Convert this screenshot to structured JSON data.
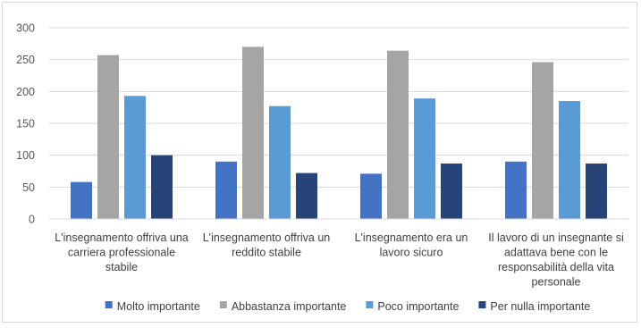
{
  "chart_data": {
    "type": "bar",
    "ylim": [
      0,
      300
    ],
    "yticks": [
      0,
      50,
      100,
      150,
      200,
      250,
      300
    ],
    "grid": true,
    "legend_position": "bottom",
    "categories": [
      [
        "L'insegnamento offriva una",
        "carriera professionale",
        "stabile"
      ],
      [
        "L'insegnamento offriva un",
        "reddito stabile"
      ],
      [
        "L'insegnamento era un",
        "lavoro sicuro"
      ],
      [
        "Il lavoro di un insegnante si",
        "adattava bene con le",
        "responsabilità della vita",
        "personale"
      ]
    ],
    "series": [
      {
        "name": "Molto importante",
        "color": "#4472c4",
        "values": [
          58,
          90,
          71,
          90
        ]
      },
      {
        "name": "Abbastanza importante",
        "color": "#a5a5a5",
        "values": [
          257,
          270,
          264,
          246
        ]
      },
      {
        "name": "Poco importante",
        "color": "#5b9bd5",
        "values": [
          193,
          177,
          189,
          185
        ]
      },
      {
        "name": "Per nulla importante",
        "color": "#264478",
        "values": [
          100,
          72,
          87,
          87
        ]
      }
    ]
  }
}
